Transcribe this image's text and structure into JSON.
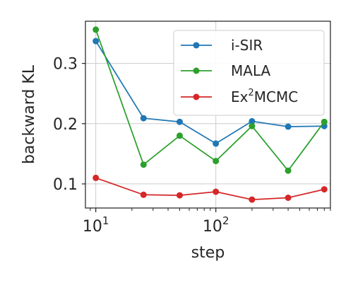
{
  "chart_data": {
    "type": "line",
    "xlabel": "step",
    "ylabel": "backward KL",
    "xscale": "log",
    "xlim": [
      8.2,
      900
    ],
    "ylim": [
      0.06,
      0.37
    ],
    "x": [
      10,
      25,
      50,
      100,
      200,
      400,
      800
    ],
    "xticks": [
      {
        "value": 10,
        "base": "10",
        "exp": "1"
      },
      {
        "value": 100,
        "base": "10",
        "exp": "2"
      }
    ],
    "yticks": [
      {
        "value": 0.1,
        "label": "0.1"
      },
      {
        "value": 0.2,
        "label": "0.2"
      },
      {
        "value": 0.3,
        "label": "0.3"
      }
    ],
    "grid": true,
    "legend_position": "top-right",
    "series": [
      {
        "name": "i-SIR",
        "color": "#1f77b4",
        "values": [
          0.337,
          0.209,
          0.203,
          0.167,
          0.204,
          0.195,
          0.196
        ]
      },
      {
        "name": "MALA",
        "color": "#2ca02c",
        "values": [
          0.356,
          0.132,
          0.18,
          0.138,
          0.196,
          0.122,
          0.203
        ]
      },
      {
        "name_base": "Ex",
        "name_sup": "2",
        "name_rest": "MCMC",
        "color": "#d62728",
        "values": [
          0.11,
          0.082,
          0.081,
          0.087,
          0.074,
          0.077,
          0.091
        ]
      }
    ]
  }
}
